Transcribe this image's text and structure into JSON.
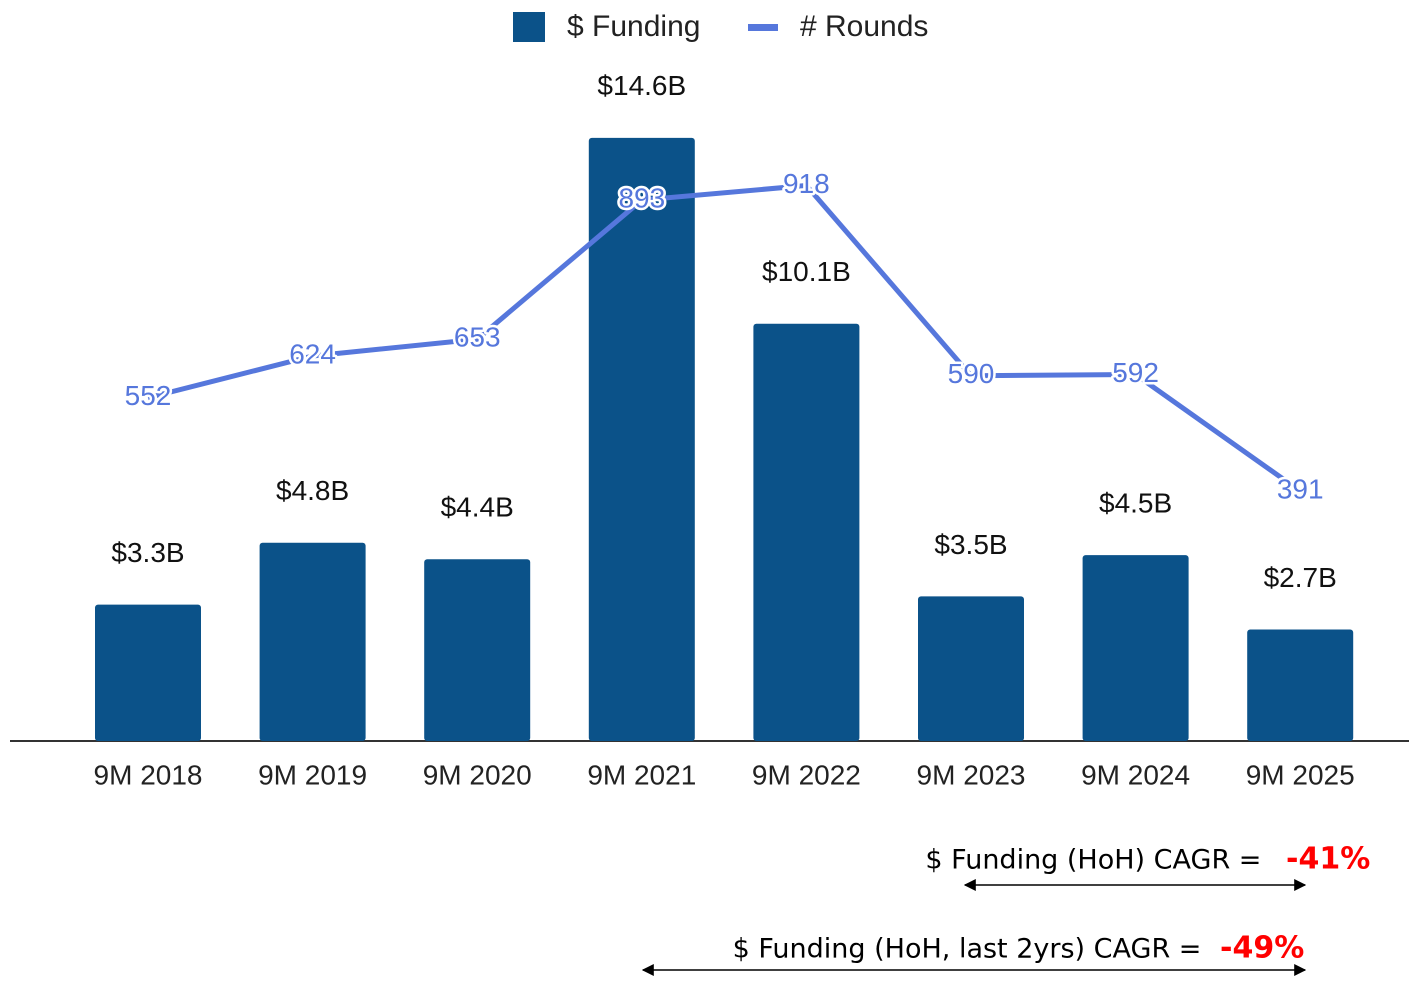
{
  "chart_data": {
    "type": "bar_line",
    "categories": [
      "9M 2018",
      "9M 2019",
      "9M 2020",
      "9M 2021",
      "9M 2022",
      "9M 2023",
      "9M 2024",
      "9M 2025"
    ],
    "series": [
      {
        "name": "$ Funding",
        "color": "#0b5289",
        "values": [
          3.3,
          4.8,
          4.4,
          14.6,
          10.1,
          3.5,
          4.5,
          2.7
        ],
        "value_labels": [
          "$3.3B",
          "$4.8B",
          "$4.4B",
          "$14.6B",
          "$10.1B",
          "$3.5B",
          "$4.5B",
          "$2.7B"
        ]
      },
      {
        "name": "# Rounds",
        "color": "#5677dc",
        "axis": "y2",
        "values": [
          552,
          624,
          653,
          893,
          918,
          590,
          592,
          391
        ]
      }
    ],
    "ylim": [
      0,
      16
    ],
    "y2lim": [
      -40,
      1100
    ],
    "annotations": [
      {
        "text": "$ Funding (HoH) CAGR = ",
        "value": "-41%"
      },
      {
        "text": "$ Funding (HoH, last 2yrs) CAGR = ",
        "value": "-49%"
      }
    ]
  }
}
